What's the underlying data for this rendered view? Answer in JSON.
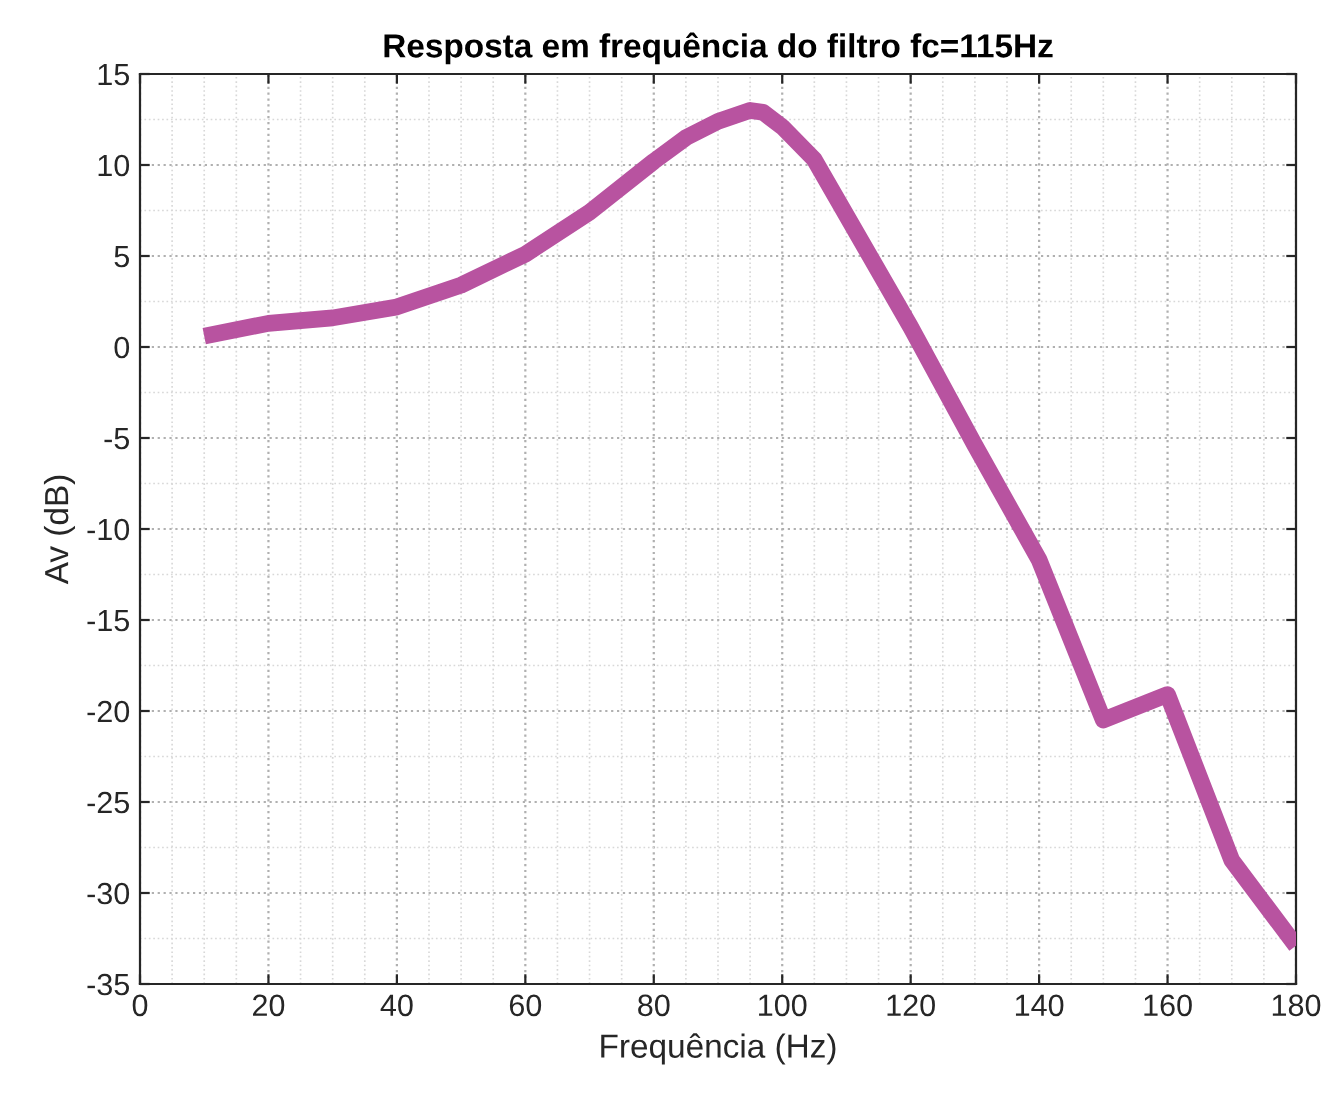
{
  "chart_data": {
    "type": "line",
    "title": "Resposta em frequência do filtro fc=115Hz",
    "xlabel": "Frequência (Hz)",
    "ylabel": "Av (dB)",
    "x": [
      10,
      20,
      30,
      40,
      50,
      60,
      70,
      80,
      85,
      90,
      95,
      97,
      100,
      105,
      120,
      130,
      140,
      150,
      160,
      170,
      180
    ],
    "series": [
      {
        "color": "#b853a0",
        "values": [
          0.6,
          1.3,
          1.6,
          2.2,
          3.4,
          5.1,
          7.4,
          10.2,
          11.5,
          12.4,
          13.0,
          12.9,
          12.1,
          10.3,
          1.1,
          -5.4,
          -11.7,
          -20.5,
          -19.1,
          -28.2,
          -32.9
        ]
      }
    ],
    "xlim": [
      0,
      180
    ],
    "xticks": [
      0,
      20,
      40,
      60,
      80,
      100,
      120,
      140,
      160,
      180
    ],
    "ylim": [
      -35,
      15
    ],
    "yticks": [
      -35,
      -30,
      -25,
      -20,
      -15,
      -10,
      -5,
      0,
      5,
      10,
      15
    ],
    "grid": true,
    "marker": "none",
    "line_style": "solid"
  }
}
